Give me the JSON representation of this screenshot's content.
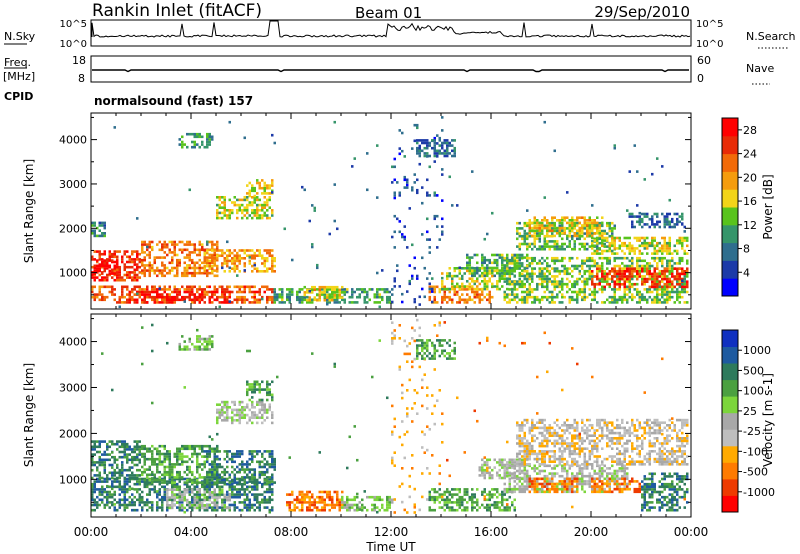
{
  "header": {
    "site": "Rankin Inlet (fitACF)",
    "beam": "Beam 01",
    "date": "29/Sep/2010"
  },
  "nsky_panel": {
    "left_label": "N.Sky",
    "left_ticks": [
      "10^5",
      "10^0"
    ],
    "right_label": "N.Search",
    "right_ticks": [
      "10^5",
      "10^0"
    ]
  },
  "freq_panel": {
    "left_label_line1": "Freq.",
    "left_label_line2": "[MHz]",
    "left_ticks": [
      "18",
      "8"
    ],
    "right_label": "Nave",
    "right_ticks": [
      "60",
      "0"
    ]
  },
  "cpid": {
    "label": "CPID",
    "value": "normalsound (fast) 157"
  },
  "colors": {
    "power": [
      "#0000ff",
      "#1c3aa8",
      "#2f6e8e",
      "#35956a",
      "#58c31c",
      "#f2d419",
      "#f59c0d",
      "#f26a08",
      "#e82b06",
      "#ff0000"
    ],
    "velocity": [
      "#ff0000",
      "#ee3a00",
      "#ff7b00",
      "#ffaa00",
      "#bebebe",
      "#a8a8a8",
      "#7cd53b",
      "#4ba040",
      "#2e7a5c",
      "#1e5aa0",
      "#1030c0"
    ]
  },
  "chart_data": [
    {
      "type": "heatmap",
      "name": "power-panel",
      "xlabel": "",
      "ylabel": "Slant Range [km]",
      "xlim": [
        "00:00",
        "24:00"
      ],
      "ylim": [
        180,
        4600
      ],
      "y_ticks": [
        1000,
        2000,
        3000,
        4000
      ],
      "colorbar": {
        "label": "Power [dB]",
        "ticks": [
          "4",
          "8",
          "12",
          "16",
          "20",
          "24",
          "28"
        ],
        "range": [
          0,
          30
        ]
      },
      "regions": [
        {
          "t0": 0.0,
          "t1": 7.2,
          "r0": 300,
          "r1": 700,
          "v": 22
        },
        {
          "t0": 1.5,
          "t1": 5.5,
          "r0": 300,
          "r1": 550,
          "v": 27
        },
        {
          "t0": 0.0,
          "t1": 2.0,
          "r0": 800,
          "r1": 1500,
          "v": 24
        },
        {
          "t0": 0.1,
          "t1": 1.0,
          "r0": 950,
          "r1": 1250,
          "v": 28
        },
        {
          "t0": 2.0,
          "t1": 5.0,
          "r0": 900,
          "r1": 1700,
          "v": 20
        },
        {
          "t0": 4.5,
          "t1": 7.3,
          "r0": 1000,
          "r1": 1500,
          "v": 18
        },
        {
          "t0": 5.0,
          "t1": 7.2,
          "r0": 2200,
          "r1": 2700,
          "v": 14
        },
        {
          "t0": 6.2,
          "t1": 7.2,
          "r0": 2700,
          "r1": 3100,
          "v": 15
        },
        {
          "t0": 0.0,
          "t1": 0.6,
          "r0": 1800,
          "r1": 2100,
          "v": 8
        },
        {
          "t0": 7.3,
          "t1": 12.0,
          "r0": 300,
          "r1": 650,
          "v": 10
        },
        {
          "t0": 8.5,
          "t1": 10.0,
          "r0": 350,
          "r1": 700,
          "v": 16
        },
        {
          "t0": 13.5,
          "t1": 16.0,
          "r0": 300,
          "r1": 700,
          "v": 20
        },
        {
          "t0": 14.0,
          "t1": 17.0,
          "r0": 600,
          "r1": 1100,
          "v": 13
        },
        {
          "t0": 15.0,
          "t1": 17.5,
          "r0": 900,
          "r1": 1400,
          "v": 10
        },
        {
          "t0": 16.5,
          "t1": 24.0,
          "r0": 300,
          "r1": 1300,
          "v": 12
        },
        {
          "t0": 20.0,
          "t1": 24.0,
          "r0": 650,
          "r1": 1100,
          "v": 24
        },
        {
          "t0": 17.0,
          "t1": 21.0,
          "r0": 1500,
          "r1": 2100,
          "v": 11
        },
        {
          "t0": 17.5,
          "t1": 20.5,
          "r0": 1800,
          "r1": 2250,
          "v": 16
        },
        {
          "t0": 20.0,
          "t1": 24.0,
          "r0": 1400,
          "r1": 1800,
          "v": 14
        },
        {
          "t0": 21.5,
          "t1": 23.8,
          "r0": 2000,
          "r1": 2300,
          "v": 6
        },
        {
          "t0": 12.0,
          "t1": 14.0,
          "r0": 250,
          "r1": 4500,
          "v": 4,
          "d": 0.07
        },
        {
          "t0": 13.0,
          "t1": 14.5,
          "r0": 3600,
          "r1": 4000,
          "v": 6
        },
        {
          "t0": 3.5,
          "t1": 4.8,
          "r0": 3800,
          "r1": 4100,
          "v": 9
        },
        {
          "t0": 0.2,
          "t1": 12.0,
          "r0": 200,
          "r1": 4400,
          "v": 6,
          "d": 0.006
        },
        {
          "t0": 14.0,
          "t1": 24.0,
          "r0": 200,
          "r1": 4400,
          "v": 6,
          "d": 0.005
        }
      ]
    },
    {
      "type": "heatmap",
      "name": "velocity-panel",
      "xlabel": "Time UT",
      "ylabel": "Slant Range [km]",
      "xlim": [
        "00:00",
        "24:00"
      ],
      "ylim": [
        180,
        4600
      ],
      "x_ticks": [
        "00:00",
        "04:00",
        "08:00",
        "12:00",
        "16:00",
        "20:00",
        "00:00"
      ],
      "y_ticks": [
        1000,
        2000,
        3000,
        4000
      ],
      "colorbar": {
        "label": "Velocity [m s-1]",
        "ticks": [
          "1000",
          "500",
          "100",
          "25",
          "-25",
          "-100",
          "-500",
          "-1000"
        ]
      },
      "regions": [
        {
          "t0": 0.0,
          "t1": 7.2,
          "r0": 300,
          "r1": 1000,
          "v": 8
        },
        {
          "t0": 0.0,
          "t1": 2.0,
          "r0": 1000,
          "r1": 1800,
          "v": 8
        },
        {
          "t0": 2.0,
          "t1": 5.0,
          "r0": 900,
          "r1": 1700,
          "v": 7
        },
        {
          "t0": 4.5,
          "t1": 7.3,
          "r0": 900,
          "r1": 1600,
          "v": 8
        },
        {
          "t0": 3.0,
          "t1": 5.5,
          "r0": 350,
          "r1": 800,
          "v": 5
        },
        {
          "t0": 5.0,
          "t1": 7.2,
          "r0": 2200,
          "r1": 2700,
          "v": 5
        },
        {
          "t0": 6.2,
          "t1": 7.2,
          "r0": 2700,
          "r1": 3100,
          "v": 7
        },
        {
          "t0": 7.8,
          "t1": 10.0,
          "r0": 300,
          "r1": 700,
          "v": 2
        },
        {
          "t0": 10.0,
          "t1": 12.0,
          "r0": 300,
          "r1": 600,
          "v": 6
        },
        {
          "t0": 13.5,
          "t1": 17.0,
          "r0": 300,
          "r1": 800,
          "v": 7
        },
        {
          "t0": 15.5,
          "t1": 17.5,
          "r0": 1000,
          "r1": 1400,
          "v": 5
        },
        {
          "t0": 16.5,
          "t1": 21.5,
          "r0": 700,
          "r1": 1300,
          "v": 5
        },
        {
          "t0": 17.5,
          "t1": 19.5,
          "r0": 700,
          "r1": 1000,
          "v": 2
        },
        {
          "t0": 20.0,
          "t1": 22.0,
          "r0": 700,
          "r1": 1000,
          "v": 2
        },
        {
          "t0": 22.0,
          "t1": 24.0,
          "r0": 300,
          "r1": 1100,
          "v": 8
        },
        {
          "t0": 17.0,
          "t1": 24.0,
          "r0": 1300,
          "r1": 2300,
          "v": 4
        },
        {
          "t0": 12.0,
          "t1": 14.0,
          "r0": 250,
          "r1": 4500,
          "v": 3,
          "d": 0.07
        },
        {
          "t0": 13.0,
          "t1": 14.5,
          "r0": 3600,
          "r1": 4000,
          "v": 7
        },
        {
          "t0": 3.5,
          "t1": 4.8,
          "r0": 3800,
          "r1": 4100,
          "v": 6
        },
        {
          "t0": 0.2,
          "t1": 12.0,
          "r0": 200,
          "r1": 4400,
          "v": 7,
          "d": 0.006
        },
        {
          "t0": 14.0,
          "t1": 24.0,
          "r0": 200,
          "r1": 4400,
          "v": 2,
          "d": 0.005
        }
      ]
    }
  ]
}
